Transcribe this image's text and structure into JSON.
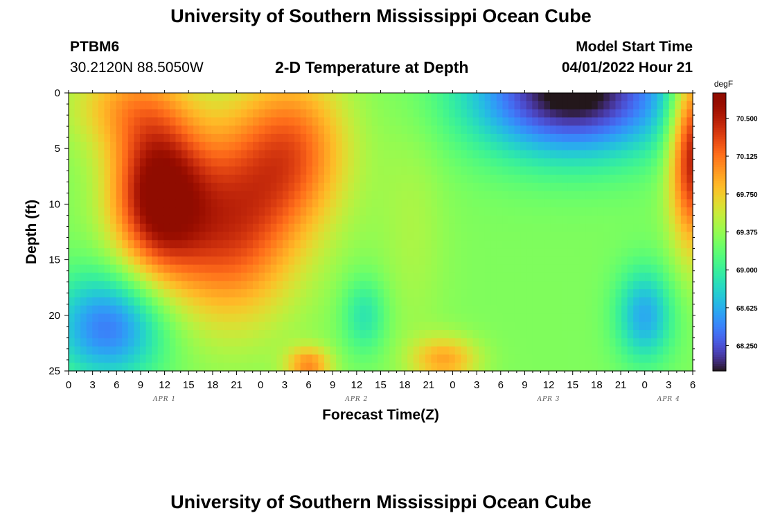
{
  "header": {
    "title": "University of Southern Mississippi Ocean Cube",
    "station": "PTBM6",
    "location": "30.2120N  88.5050W",
    "subtitle": "2-D Temperature at Depth",
    "model_start_label": "Model Start Time",
    "model_start_value": "04/01/2022 Hour 21"
  },
  "footer": {
    "title": "University of Southern Mississippi Ocean Cube"
  },
  "chart_data": {
    "type": "heatmap",
    "title": "2-D Temperature at Depth",
    "xlabel": "Forecast Time(Z)",
    "ylabel": "Depth (ft)",
    "x_unit": "forecast hours from 04/01/2022 00Z",
    "x_range": [
      0,
      78
    ],
    "x_tick_labels": [
      "0",
      "3",
      "6",
      "9",
      "12",
      "15",
      "18",
      "21",
      "0",
      "3",
      "6",
      "9",
      "12",
      "15",
      "18",
      "21",
      "0",
      "3",
      "6",
      "9",
      "12",
      "15",
      "18",
      "21",
      "0",
      "3",
      "6"
    ],
    "date_labels": [
      {
        "label": "APR 1",
        "hour": 12
      },
      {
        "label": "APR 2",
        "hour": 36
      },
      {
        "label": "APR 3",
        "hour": 60
      },
      {
        "label": "APR 4",
        "hour": 75
      }
    ],
    "y_range": [
      0,
      25
    ],
    "y_ticks": [
      0,
      5,
      10,
      15,
      20,
      25
    ],
    "colorbar": {
      "unit": "degF",
      "min": 68.0,
      "max": 70.75,
      "tick_values": [
        70.5,
        70.125,
        69.75,
        69.375,
        69.0,
        68.625,
        68.25
      ],
      "tick_labels": [
        "70.500",
        "70.125",
        "69.750",
        "69.375",
        "69.000",
        "68.625",
        "68.250"
      ],
      "colormap": "turbo"
    },
    "features": [
      {
        "t": 11,
        "d": 9,
        "sigma_t": 4,
        "sigma_d": 5,
        "amp": 1.3
      },
      {
        "t": 20,
        "d": 12,
        "sigma_t": 6,
        "sigma_d": 6,
        "amp": 1.0
      },
      {
        "t": 28,
        "d": 5,
        "sigma_t": 5,
        "sigma_d": 5,
        "amp": 0.8
      },
      {
        "t": 7,
        "d": 1,
        "sigma_t": 5,
        "sigma_d": 3,
        "amp": 0.5
      },
      {
        "t": 5,
        "d": 21,
        "sigma_t": 5,
        "sigma_d": 3.5,
        "amp": -0.9
      },
      {
        "t": 37,
        "d": 20,
        "sigma_t": 2,
        "sigma_d": 2.5,
        "amp": -0.4
      },
      {
        "t": 63,
        "d": 0,
        "sigma_t": 9,
        "sigma_d": 4,
        "amp": -1.4
      },
      {
        "t": 72,
        "d": 20,
        "sigma_t": 2.5,
        "sigma_d": 3,
        "amp": -0.7
      },
      {
        "t": 78,
        "d": 5,
        "sigma_t": 2,
        "sigma_d": 6,
        "amp": 1.3
      },
      {
        "t": 43,
        "d": 12,
        "sigma_t": 3,
        "sigma_d": 8,
        "amp": 0.15
      },
      {
        "t": 47,
        "d": 24,
        "sigma_t": 3,
        "sigma_d": 1.5,
        "amp": 0.6
      },
      {
        "t": 30,
        "d": 24.5,
        "sigma_t": 2,
        "sigma_d": 1.2,
        "amp": 0.7
      }
    ],
    "baseline_degF": 69.3
  }
}
